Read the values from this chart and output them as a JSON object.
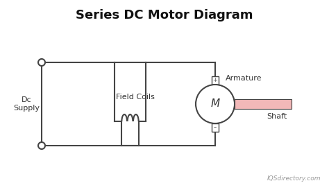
{
  "title": "Series DC Motor Diagram",
  "title_fontsize": 13,
  "title_fontweight": "bold",
  "bg_color": "#ffffff",
  "line_color": "#444444",
  "line_width": 1.5,
  "dc_supply_label": "Dc\nSupply",
  "field_coils_label": "Field Coils",
  "armature_label": "Armature",
  "shaft_label": "Shaft",
  "motor_label": "M",
  "watermark": "IQSdirectory.com",
  "shaft_color": "#f2b8b8",
  "motor_circle_color": "#ffffff",
  "motor_stroke_color": "#444444",
  "terminal_box_color": "#ffffff"
}
